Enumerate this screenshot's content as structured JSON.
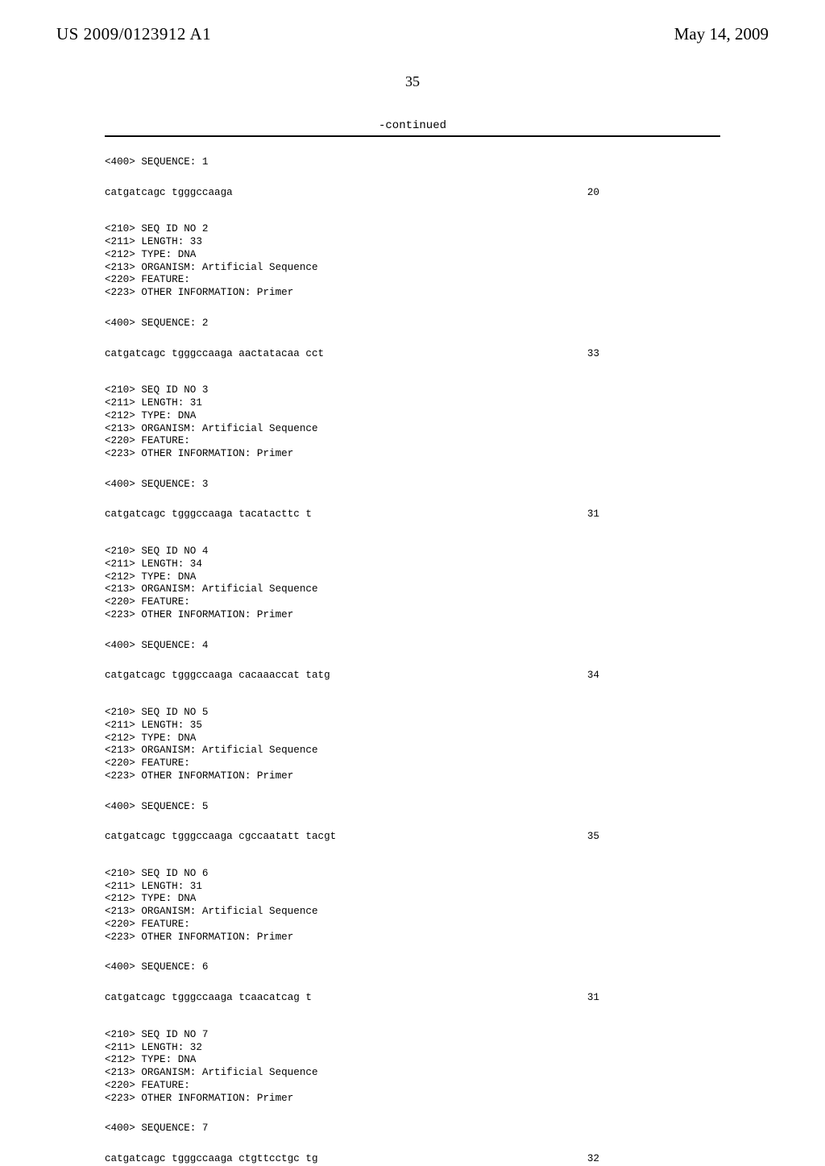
{
  "header": {
    "doc_id": "US 2009/0123912 A1",
    "date": "May 14, 2009"
  },
  "page_number": "35",
  "continued": "-continued",
  "entries": [
    {
      "pre": "<400> SEQUENCE: 1",
      "seq": "catgatcagc tgggccaaga",
      "len": "20"
    },
    {
      "meta": [
        "<210> SEQ ID NO 2",
        "<211> LENGTH: 33",
        "<212> TYPE: DNA",
        "<213> ORGANISM: Artificial Sequence",
        "<220> FEATURE:",
        "<223> OTHER INFORMATION: Primer"
      ],
      "pre": "<400> SEQUENCE: 2",
      "seq": "catgatcagc tgggccaaga aactatacaa cct",
      "len": "33"
    },
    {
      "meta": [
        "<210> SEQ ID NO 3",
        "<211> LENGTH: 31",
        "<212> TYPE: DNA",
        "<213> ORGANISM: Artificial Sequence",
        "<220> FEATURE:",
        "<223> OTHER INFORMATION: Primer"
      ],
      "pre": "<400> SEQUENCE: 3",
      "seq": "catgatcagc tgggccaaga tacatacttc t",
      "len": "31"
    },
    {
      "meta": [
        "<210> SEQ ID NO 4",
        "<211> LENGTH: 34",
        "<212> TYPE: DNA",
        "<213> ORGANISM: Artificial Sequence",
        "<220> FEATURE:",
        "<223> OTHER INFORMATION: Primer"
      ],
      "pre": "<400> SEQUENCE: 4",
      "seq": "catgatcagc tgggccaaga cacaaaccat tatg",
      "len": "34"
    },
    {
      "meta": [
        "<210> SEQ ID NO 5",
        "<211> LENGTH: 35",
        "<212> TYPE: DNA",
        "<213> ORGANISM: Artificial Sequence",
        "<220> FEATURE:",
        "<223> OTHER INFORMATION: Primer"
      ],
      "pre": "<400> SEQUENCE: 5",
      "seq": "catgatcagc tgggccaaga cgccaatatt tacgt",
      "len": "35"
    },
    {
      "meta": [
        "<210> SEQ ID NO 6",
        "<211> LENGTH: 31",
        "<212> TYPE: DNA",
        "<213> ORGANISM: Artificial Sequence",
        "<220> FEATURE:",
        "<223> OTHER INFORMATION: Primer"
      ],
      "pre": "<400> SEQUENCE: 6",
      "seq": "catgatcagc tgggccaaga tcaacatcag t",
      "len": "31"
    },
    {
      "meta": [
        "<210> SEQ ID NO 7",
        "<211> LENGTH: 32",
        "<212> TYPE: DNA",
        "<213> ORGANISM: Artificial Sequence",
        "<220> FEATURE:",
        "<223> OTHER INFORMATION: Primer"
      ],
      "pre": "<400> SEQUENCE: 7",
      "seq": "catgatcagc tgggccaaga ctgttcctgc tg",
      "len": "32"
    }
  ]
}
